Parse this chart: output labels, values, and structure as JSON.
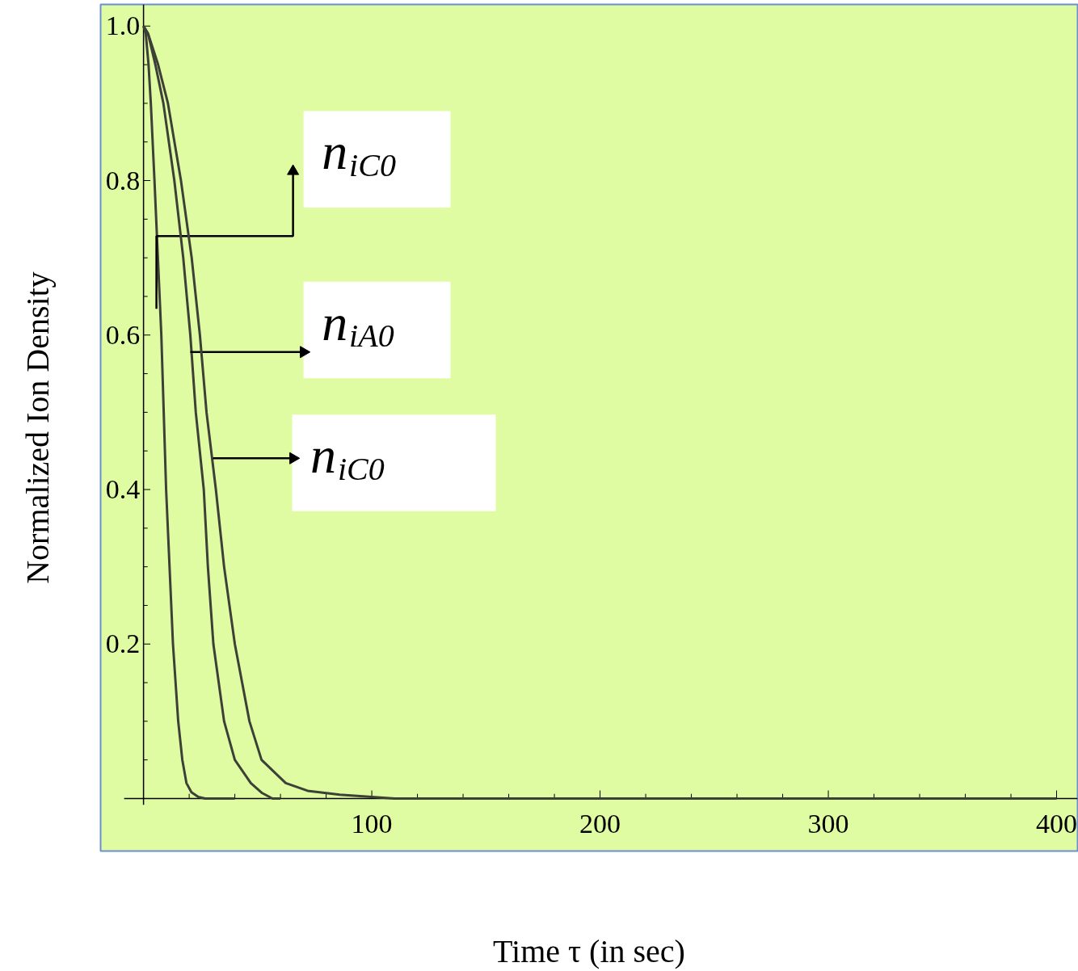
{
  "chart_data": {
    "type": "line",
    "xlabel": "Time τ (in sec)",
    "ylabel": "Normalized Ion Density",
    "xlim": [
      -18.8,
      409.2
    ],
    "ylim": [
      -0.068,
      1.028
    ],
    "xticks": [
      {
        "value": 20,
        "label": null
      },
      {
        "value": 40,
        "label": null
      },
      {
        "value": 60,
        "label": null
      },
      {
        "value": 80,
        "label": null
      },
      100,
      {
        "value": 120,
        "label": null
      },
      {
        "value": 140,
        "label": null
      },
      {
        "value": 160,
        "label": null
      },
      {
        "value": 180,
        "label": null
      },
      200,
      {
        "value": 220,
        "label": null
      },
      {
        "value": 240,
        "label": null
      },
      {
        "value": 260,
        "label": null
      },
      {
        "value": 280,
        "label": null
      },
      300,
      {
        "value": 320,
        "label": null
      },
      {
        "value": 340,
        "label": null
      },
      {
        "value": 360,
        "label": null
      },
      {
        "value": 380,
        "label": null
      },
      400
    ],
    "yticks": [
      {
        "value": 0.05,
        "label": null
      },
      {
        "value": 0.1,
        "label": null
      },
      {
        "value": 0.15,
        "label": null
      },
      0.2,
      {
        "value": 0.25,
        "label": null
      },
      {
        "value": 0.3,
        "label": null
      },
      {
        "value": 0.35,
        "label": null
      },
      0.4,
      {
        "value": 0.45,
        "label": null
      },
      {
        "value": 0.5,
        "label": null
      },
      {
        "value": 0.55,
        "label": null
      },
      0.6,
      {
        "value": 0.65,
        "label": null
      },
      {
        "value": 0.7,
        "label": null
      },
      {
        "value": 0.75,
        "label": null
      },
      0.8,
      {
        "value": 0.85,
        "label": null
      },
      {
        "value": 0.9,
        "label": null
      },
      {
        "value": 0.95,
        "label": null
      },
      {
        "value": 1,
        "label": "1.0"
      }
    ],
    "grid": false,
    "marker": "none",
    "line_style": "solid",
    "series": [
      {
        "name": "n$_{iC0}$",
        "color": "#3c4036",
        "x": [
          0,
          1,
          2.2,
          3.2,
          4.8,
          6.3,
          7.8,
          9.9,
          12.9,
          15.2,
          17,
          18.8,
          21,
          24,
          27,
          40
        ],
        "values": [
          1,
          0.99,
          0.95,
          0.9,
          0.8,
          0.7,
          0.6,
          0.4,
          0.2,
          0.1,
          0.05,
          0.02,
          0.008,
          0.002,
          0,
          0
        ]
      },
      {
        "name": "n$_{iA0}$",
        "color": "#3c4036",
        "x": [
          0,
          2,
          5.2,
          8.7,
          13.5,
          17.4,
          20.5,
          22.9,
          26.4,
          28.2,
          30.6,
          35.3,
          40,
          47,
          52,
          56.5,
          60
        ],
        "values": [
          1,
          0.99,
          0.95,
          0.9,
          0.8,
          0.7,
          0.6,
          0.5,
          0.4,
          0.3,
          0.2,
          0.1,
          0.05,
          0.02,
          0.007,
          0,
          0
        ]
      },
      {
        "name": "n$_{iC0}$",
        "color": "#3c4036",
        "x": [
          0,
          2,
          6.4,
          10.7,
          16.4,
          21.1,
          24.7,
          27.6,
          31.7,
          35.3,
          40,
          46.4,
          51.7,
          62.3,
          71.9,
          86,
          110,
          200,
          300,
          400
        ],
        "values": [
          1,
          0.99,
          0.95,
          0.9,
          0.8,
          0.7,
          0.6,
          0.5,
          0.4,
          0.3,
          0.2,
          0.1,
          0.05,
          0.02,
          0.01,
          0.005,
          0,
          0,
          0,
          0
        ]
      }
    ]
  }
}
